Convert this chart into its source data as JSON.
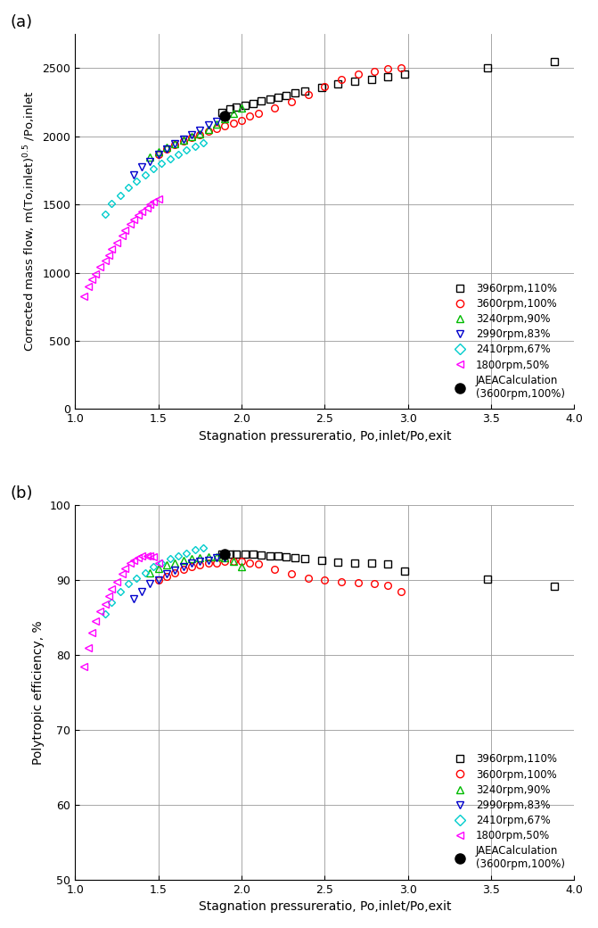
{
  "subplot_a": {
    "xlabel": "Stagnation pressureratio, Po,inlet/Po,exit",
    "ylabel": "Corrected mass flow, m(To,inlet)$^{0.5}$ /Po,inlet",
    "xlim": [
      1.0,
      4.0
    ],
    "ylim": [
      0,
      2750
    ],
    "xticks": [
      1.0,
      1.5,
      2.0,
      2.5,
      3.0,
      3.5,
      4.0
    ],
    "yticks": [
      0,
      500,
      1000,
      1500,
      2000,
      2500
    ],
    "series": [
      {
        "label": "3960rpm,110%",
        "color": "#000000",
        "marker": "s",
        "markersize": 5.5,
        "x": [
          1.88,
          1.93,
          1.97,
          2.02,
          2.07,
          2.12,
          2.17,
          2.22,
          2.27,
          2.32,
          2.38,
          2.48,
          2.58,
          2.68,
          2.78,
          2.88,
          2.98,
          3.48,
          3.88
        ],
        "y": [
          2175,
          2200,
          2215,
          2228,
          2242,
          2258,
          2272,
          2288,
          2302,
          2318,
          2332,
          2362,
          2388,
          2402,
          2418,
          2438,
          2455,
          2500,
          2550
        ]
      },
      {
        "label": "3600rpm,100%",
        "color": "#ff0000",
        "marker": "o",
        "markersize": 5.5,
        "x": [
          1.5,
          1.55,
          1.6,
          1.65,
          1.7,
          1.75,
          1.8,
          1.85,
          1.9,
          1.95,
          2.0,
          2.05,
          2.1,
          2.2,
          2.3,
          2.4,
          2.5,
          2.6,
          2.7,
          2.8,
          2.88,
          2.96
        ],
        "y": [
          1870,
          1910,
          1940,
          1965,
          1990,
          2010,
          2035,
          2055,
          2075,
          2100,
          2120,
          2148,
          2168,
          2208,
          2255,
          2305,
          2365,
          2415,
          2455,
          2480,
          2498,
          2500
        ]
      },
      {
        "label": "3240rpm,90%",
        "color": "#00bb00",
        "marker": "^",
        "markersize": 5.5,
        "x": [
          1.45,
          1.5,
          1.55,
          1.6,
          1.65,
          1.7,
          1.75,
          1.8,
          1.85,
          1.9,
          1.95,
          2.0
        ],
        "y": [
          1848,
          1888,
          1920,
          1948,
          1973,
          1998,
          2020,
          2053,
          2088,
          2128,
          2168,
          2210
        ]
      },
      {
        "label": "2990rpm,83%",
        "color": "#0000cc",
        "marker": "v",
        "markersize": 5.5,
        "x": [
          1.35,
          1.4,
          1.45,
          1.5,
          1.55,
          1.6,
          1.65,
          1.7,
          1.75,
          1.8,
          1.85,
          1.9
        ],
        "y": [
          1720,
          1778,
          1818,
          1865,
          1905,
          1945,
          1980,
          2010,
          2048,
          2085,
          2112,
          2140
        ]
      },
      {
        "label": "2410rpm,67%",
        "color": "#00cccc",
        "marker": "D",
        "markersize": 4.5,
        "x": [
          1.18,
          1.22,
          1.27,
          1.32,
          1.37,
          1.42,
          1.47,
          1.52,
          1.57,
          1.62,
          1.67,
          1.72,
          1.77
        ],
        "y": [
          1430,
          1510,
          1570,
          1625,
          1672,
          1720,
          1760,
          1800,
          1838,
          1870,
          1900,
          1928,
          1950
        ]
      },
      {
        "label": "1800rpm,50%",
        "color": "#ff00ff",
        "marker": "<",
        "markersize": 5.5,
        "x": [
          1.05,
          1.08,
          1.1,
          1.12,
          1.15,
          1.18,
          1.2,
          1.22,
          1.25,
          1.28,
          1.3,
          1.33,
          1.35,
          1.38,
          1.4,
          1.43,
          1.45,
          1.47,
          1.5
        ],
        "y": [
          830,
          900,
          950,
          990,
          1042,
          1090,
          1130,
          1172,
          1222,
          1270,
          1312,
          1360,
          1392,
          1420,
          1448,
          1478,
          1500,
          1518,
          1542
        ]
      }
    ],
    "jaea_x": [
      1.9
    ],
    "jaea_y": [
      2148
    ]
  },
  "subplot_b": {
    "xlabel": "Stagnation pressureratio, Po,inlet/Po,exit",
    "ylabel": "Polytropic efficiency, %",
    "xlim": [
      1.0,
      4.0
    ],
    "ylim": [
      50,
      100
    ],
    "xticks": [
      1.0,
      1.5,
      2.0,
      2.5,
      3.0,
      3.5,
      4.0
    ],
    "yticks": [
      50,
      60,
      70,
      80,
      90,
      100
    ],
    "series": [
      {
        "label": "3960rpm,110%",
        "color": "#000000",
        "marker": "s",
        "markersize": 5.5,
        "x": [
          1.88,
          1.93,
          1.97,
          2.02,
          2.07,
          2.12,
          2.17,
          2.22,
          2.27,
          2.32,
          2.38,
          2.48,
          2.58,
          2.68,
          2.78,
          2.88,
          2.98,
          3.48,
          3.88
        ],
        "y": [
          93.4,
          93.4,
          93.4,
          93.4,
          93.4,
          93.3,
          93.2,
          93.2,
          93.1,
          93.0,
          92.9,
          92.6,
          92.4,
          92.3,
          92.2,
          92.1,
          91.2,
          90.1,
          89.1
        ]
      },
      {
        "label": "3600rpm,100%",
        "color": "#ff0000",
        "marker": "o",
        "markersize": 5.5,
        "x": [
          1.5,
          1.55,
          1.6,
          1.65,
          1.7,
          1.75,
          1.8,
          1.85,
          1.9,
          1.95,
          2.0,
          2.05,
          2.1,
          2.2,
          2.3,
          2.4,
          2.5,
          2.6,
          2.7,
          2.8,
          2.88,
          2.96
        ],
        "y": [
          90.0,
          90.5,
          91.0,
          91.4,
          91.8,
          92.0,
          92.2,
          92.3,
          92.5,
          92.5,
          92.5,
          92.3,
          92.1,
          91.4,
          90.8,
          90.2,
          90.0,
          89.8,
          89.6,
          89.5,
          89.3,
          88.5
        ]
      },
      {
        "label": "3240rpm,90%",
        "color": "#00bb00",
        "marker": "^",
        "markersize": 5.5,
        "x": [
          1.45,
          1.5,
          1.55,
          1.6,
          1.65,
          1.7,
          1.75,
          1.8,
          1.85,
          1.9,
          1.95,
          2.0
        ],
        "y": [
          91.0,
          91.5,
          92.0,
          92.3,
          92.6,
          92.8,
          93.0,
          93.1,
          93.1,
          93.0,
          92.5,
          91.8
        ]
      },
      {
        "label": "2990rpm,83%",
        "color": "#0000cc",
        "marker": "v",
        "markersize": 5.5,
        "x": [
          1.35,
          1.4,
          1.45,
          1.5,
          1.55,
          1.6,
          1.65,
          1.7,
          1.75,
          1.8,
          1.85,
          1.9
        ],
        "y": [
          87.5,
          88.5,
          89.5,
          90.0,
          90.8,
          91.3,
          91.8,
          92.2,
          92.5,
          92.6,
          93.0,
          93.0
        ]
      },
      {
        "label": "2410rpm,67%",
        "color": "#00cccc",
        "marker": "D",
        "markersize": 4.5,
        "x": [
          1.18,
          1.22,
          1.27,
          1.32,
          1.37,
          1.42,
          1.47,
          1.52,
          1.57,
          1.62,
          1.67,
          1.72,
          1.77
        ],
        "y": [
          85.5,
          87.0,
          88.5,
          89.5,
          90.2,
          91.0,
          91.8,
          92.3,
          92.8,
          93.2,
          93.6,
          94.0,
          94.3
        ]
      },
      {
        "label": "1800rpm,50%",
        "color": "#ff00ff",
        "marker": "<",
        "markersize": 5.5,
        "x": [
          1.05,
          1.08,
          1.1,
          1.12,
          1.15,
          1.18,
          1.2,
          1.22,
          1.25,
          1.28,
          1.3,
          1.33,
          1.35,
          1.38,
          1.4,
          1.43,
          1.45,
          1.47,
          1.5
        ],
        "y": [
          78.5,
          81.0,
          83.0,
          84.5,
          85.8,
          86.8,
          87.8,
          88.8,
          89.8,
          90.8,
          91.5,
          92.2,
          92.6,
          93.0,
          93.2,
          93.2,
          93.2,
          93.1,
          92.3
        ]
      }
    ],
    "jaea_x": [
      1.9
    ],
    "jaea_y": [
      93.4
    ]
  },
  "legend_labels": [
    "3960rpm,110%",
    "3600rpm,100%",
    "3240rpm,90%",
    "2990rpm,83%",
    "2410rpm,67%",
    "1800rpm,50%",
    "JAEACalculation\n(3600rpm,100%)"
  ],
  "colors": [
    "#000000",
    "#ff0000",
    "#00bb00",
    "#0000cc",
    "#00cccc",
    "#ff00ff"
  ],
  "markers": [
    "s",
    "o",
    "^",
    "v",
    "D",
    "<"
  ],
  "background_color": "#ffffff",
  "grid_color": "#999999"
}
